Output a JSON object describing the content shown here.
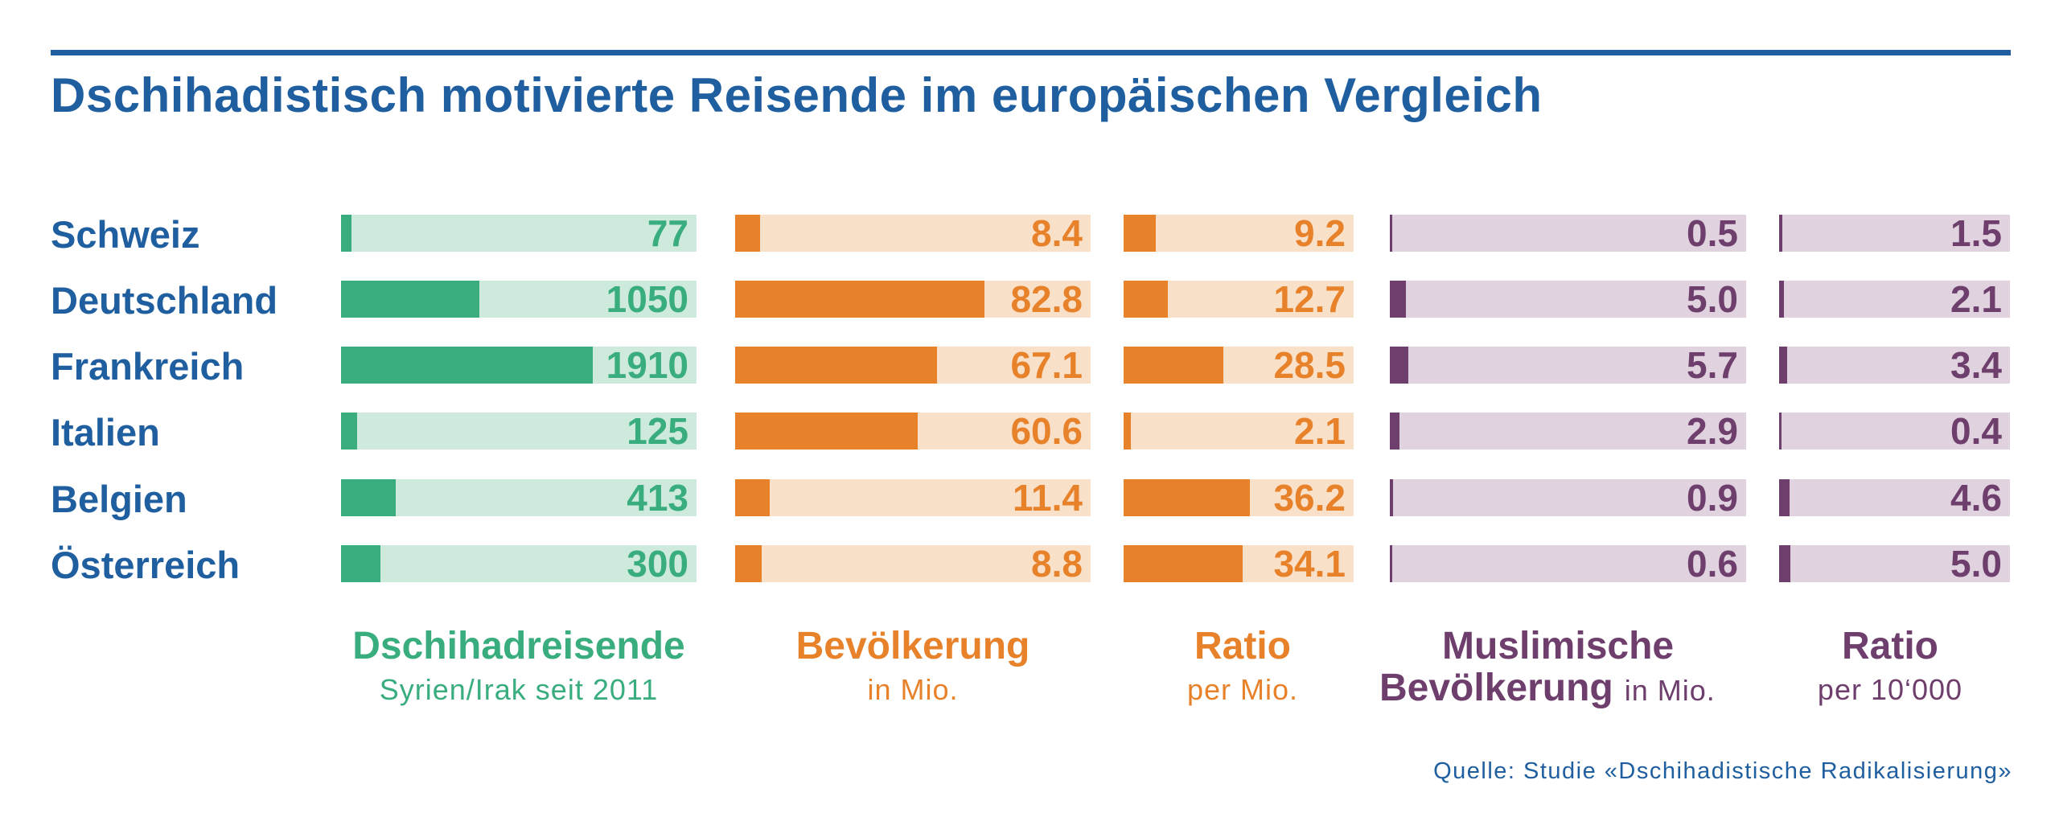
{
  "title": "Dschihadistisch motivierte Reisende im europäischen Vergleich",
  "source": "Quelle: Studie «Dschihadistische Radikalisierung»",
  "colors": {
    "blue": "#1f5fa0",
    "green": "#3aad7f",
    "green_light": "#cdeadd",
    "orange": "#e8822a",
    "orange_light": "#f9e0c9",
    "purple": "#6e3e6d",
    "purple_light": "#e0d2de"
  },
  "headers": {
    "h1_title": "Dschihadreisende",
    "h1_sub": "Syrien/Irak seit 2011",
    "h2_title": "Bevölkerung",
    "h2_sub": "in Mio.",
    "h3_title": "Ratio",
    "h3_sub": "per Mio.",
    "h4_title_1": "Muslimische",
    "h4_title_2": "Bevölkerung",
    "h4_sub": "in Mio.",
    "h5_title": "Ratio",
    "h5_sub": "per 10‘000"
  },
  "chart_data": {
    "type": "bar",
    "title": "Dschihadistisch motivierte Reisende im europäischen Vergleich",
    "categories": [
      "Schweiz",
      "Deutschland",
      "Frankreich",
      "Italien",
      "Belgien",
      "Österreich"
    ],
    "series": [
      {
        "name": "Dschihadreisende Syrien/Irak seit 2011",
        "values": [
          77,
          1050,
          1910,
          125,
          413,
          300
        ],
        "labels": [
          "77",
          "1050",
          "1910",
          "125",
          "413",
          "300"
        ],
        "max": 2700
      },
      {
        "name": "Bevölkerung in Mio.",
        "values": [
          8.4,
          82.8,
          67.1,
          60.6,
          11.4,
          8.8
        ],
        "labels": [
          "8.4",
          "82.8",
          "67.1",
          "60.6",
          "11.4",
          "8.8"
        ],
        "max": 118
      },
      {
        "name": "Ratio per Mio.",
        "values": [
          9.2,
          12.7,
          28.5,
          2.1,
          36.2,
          34.1
        ],
        "labels": [
          "9.2",
          "12.7",
          "28.5",
          "2.1",
          "36.2",
          "34.1"
        ],
        "max": 66
      },
      {
        "name": "Muslimische Bevölkerung in Mio.",
        "values": [
          0.5,
          5.0,
          5.7,
          2.9,
          0.9,
          0.6
        ],
        "labels": [
          "0.5",
          "5.0",
          "5.7",
          "2.9",
          "0.9",
          "0.6"
        ],
        "max": 110
      },
      {
        "name": "Ratio per 10‘000",
        "values": [
          1.5,
          2.1,
          3.4,
          0.4,
          4.6,
          5.0
        ],
        "labels": [
          "1.5",
          "2.1",
          "3.4",
          "0.4",
          "4.6",
          "5.0"
        ],
        "max": 100
      }
    ]
  }
}
